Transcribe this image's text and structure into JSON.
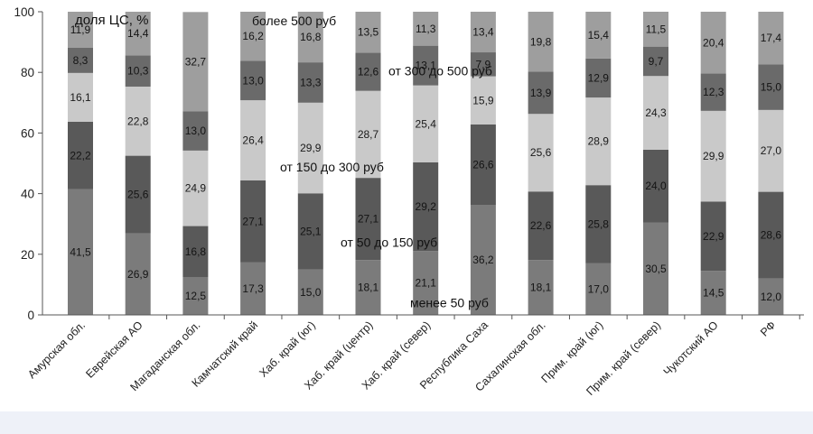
{
  "chart_data": {
    "type": "bar",
    "stacked": true,
    "title": "",
    "ylabel": "доля ЦС, %",
    "ylim": [
      0,
      100
    ],
    "yticks": [
      0,
      20,
      40,
      60,
      80,
      100
    ],
    "categories": [
      "Амурская обл.",
      "Еврейская АО",
      "Магаданская обл.",
      "Камчатский край",
      "Хаб. край (юг)",
      "Хаб. край (центр)",
      "Хаб. край (север)",
      "Республика Саха",
      "Сахалинская обл.",
      "Прим. край (юг)",
      "Прим. край (север)",
      "Чукотский АО",
      "РФ"
    ],
    "series": [
      {
        "name": "менее 50 руб",
        "color": "#7b7b7b",
        "values": [
          41.5,
          26.9,
          12.5,
          17.3,
          15.0,
          18.1,
          21.1,
          36.2,
          18.1,
          17.0,
          30.5,
          14.5,
          12.0
        ]
      },
      {
        "name": "от 50 до 150 руб",
        "color": "#595959",
        "values": [
          22.2,
          25.6,
          16.8,
          27.1,
          25.1,
          27.1,
          29.2,
          26.6,
          22.6,
          25.8,
          24.0,
          22.9,
          28.6
        ]
      },
      {
        "name": "от 150 до 300 руб",
        "color": "#c9c9c9",
        "values": [
          16.1,
          22.8,
          24.9,
          26.4,
          29.9,
          28.7,
          25.4,
          15.9,
          25.6,
          28.9,
          24.3,
          29.9,
          27.0
        ]
      },
      {
        "name": "от 300 до 500 руб",
        "color": "#6a6a6a",
        "values": [
          8.3,
          10.3,
          13.0,
          13.0,
          13.3,
          12.6,
          13.1,
          7.9,
          13.9,
          12.9,
          9.7,
          12.3,
          15.0
        ]
      },
      {
        "name": "более 500 руб",
        "color": "#9e9e9e",
        "values": [
          11.9,
          14.4,
          32.7,
          16.2,
          16.8,
          13.5,
          11.3,
          13.4,
          19.8,
          15.4,
          11.5,
          20.4,
          17.4
        ]
      }
    ],
    "value_labels": [
      [
        "41,5",
        "22,2",
        "16,1",
        "8,3",
        "11,9"
      ],
      [
        "26,9",
        "25,6",
        "22,8",
        "10,3",
        "14,4"
      ],
      [
        "12,5",
        "16,8",
        "24,9",
        "13,0",
        "32,7"
      ],
      [
        "17,3",
        "27,1",
        "26,4",
        "13,0",
        "16,2"
      ],
      [
        "15,0",
        "25,1",
        "29,9",
        "13,3",
        "16,8"
      ],
      [
        "18,1",
        "27,1",
        "28,7",
        "12,6",
        "13,5"
      ],
      [
        "21,1",
        "29,2",
        "25,4",
        "13,1",
        "11,3"
      ],
      [
        "36,2",
        "26,6",
        "15,9",
        "7,9",
        "13,4"
      ],
      [
        "18,1",
        "22,6",
        "25,6",
        "13,9",
        "19,8"
      ],
      [
        "17,0",
        "25,8",
        "28,9",
        "12,9",
        "15,4"
      ],
      [
        "30,5",
        "24,0",
        "24,3",
        "9,7",
        "11,5"
      ],
      [
        "14,5",
        "22,9",
        "29,9",
        "12,3",
        "20,4"
      ],
      [
        "12,0",
        "28,6",
        "27,0",
        "15,0",
        "17,4"
      ]
    ],
    "grid": false,
    "legend": "inline annotations over bars"
  }
}
